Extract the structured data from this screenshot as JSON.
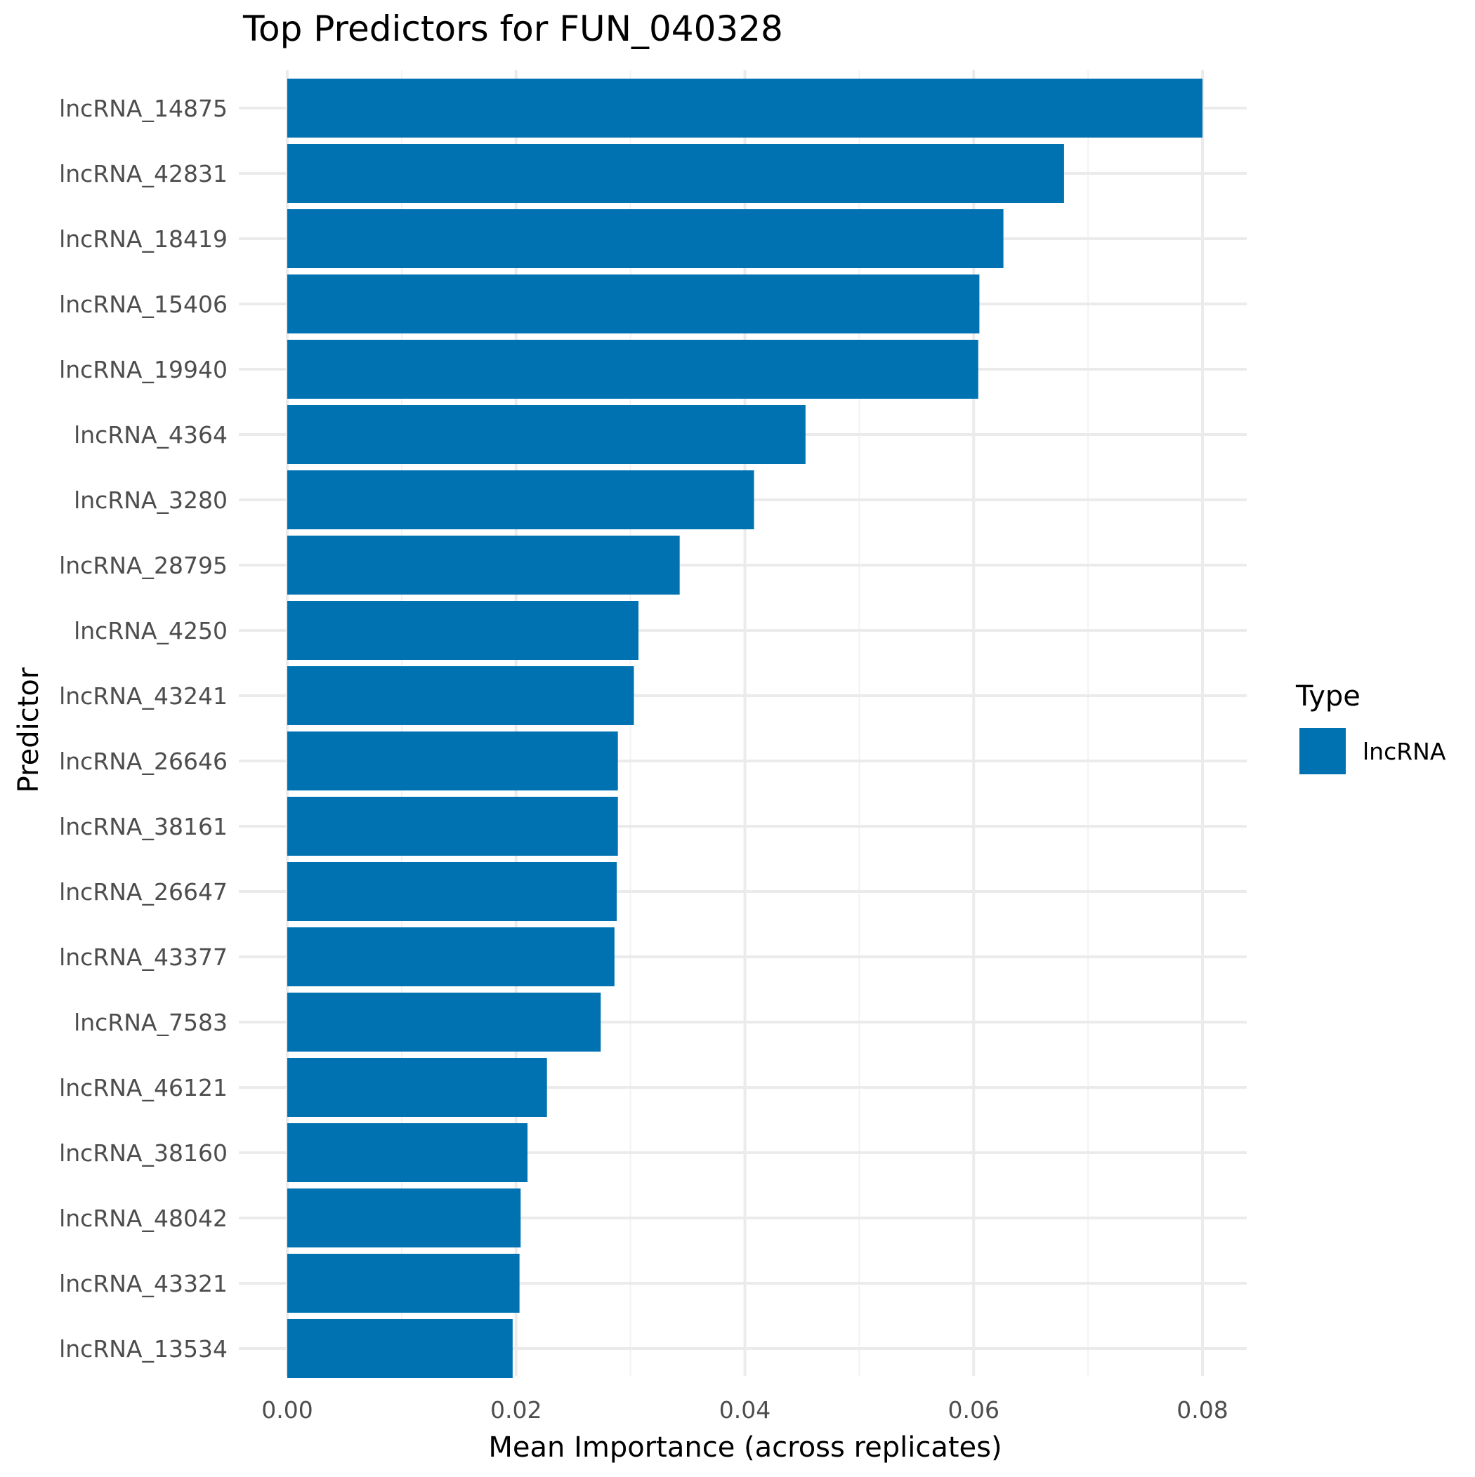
{
  "chart_data": {
    "type": "bar",
    "orientation": "horizontal",
    "title": "Top Predictors for FUN_040328",
    "xlabel": "Mean Importance (across replicates)",
    "ylabel": "Predictor",
    "xlim": [
      0,
      0.0834
    ],
    "xticks": [
      0.0,
      0.02,
      0.04,
      0.06,
      0.08
    ],
    "xtick_labels": [
      "0.00",
      "0.02",
      "0.04",
      "0.06",
      "0.08"
    ],
    "grid": true,
    "legend": {
      "title": "Type",
      "position": "right",
      "entries": [
        {
          "label": "lncRNA",
          "color": "#0072B2"
        }
      ]
    },
    "categories": [
      "lncRNA_14875",
      "lncRNA_42831",
      "lncRNA_18419",
      "lncRNA_15406",
      "lncRNA_19940",
      "lncRNA_4364",
      "lncRNA_3280",
      "lncRNA_28795",
      "lncRNA_4250",
      "lncRNA_43241",
      "lncRNA_26646",
      "lncRNA_38161",
      "lncRNA_26647",
      "lncRNA_43377",
      "lncRNA_7583",
      "lncRNA_46121",
      "lncRNA_38160",
      "lncRNA_48042",
      "lncRNA_43321",
      "lncRNA_13534"
    ],
    "series": [
      {
        "name": "lncRNA",
        "color": "#0072B2",
        "values": [
          0.08,
          0.0679,
          0.0626,
          0.0605,
          0.0604,
          0.0453,
          0.0408,
          0.0343,
          0.0307,
          0.0303,
          0.0289,
          0.0289,
          0.0288,
          0.0286,
          0.0274,
          0.0227,
          0.021,
          0.0204,
          0.0203,
          0.0197
        ]
      }
    ]
  }
}
